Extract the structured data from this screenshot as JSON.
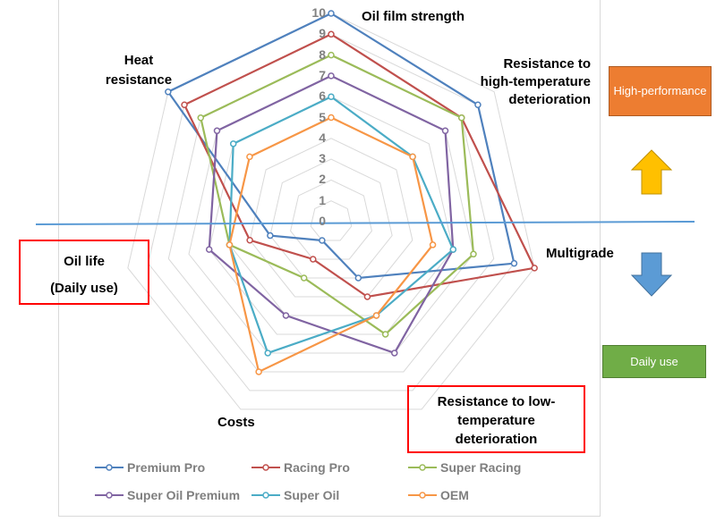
{
  "chart_data": {
    "type": "radar",
    "axes": [
      "Oil film strength",
      "Resistance to high-temperature deterioration",
      "Multigrade",
      "Resistance to low-temperature deterioration",
      "Costs",
      "Oil life (Daily use)",
      "Heat resistance"
    ],
    "rlim": [
      0,
      10
    ],
    "ticks": [
      "0",
      "1",
      "2",
      "3",
      "4",
      "5",
      "6",
      "7",
      "8",
      "9",
      "10"
    ],
    "grid": true,
    "legend": "bottom",
    "series": [
      {
        "name": "Premium Pro",
        "color": "#4f81bd",
        "values": [
          10,
          9,
          9,
          3,
          1,
          3,
          10
        ]
      },
      {
        "name": "Racing Pro",
        "color": "#c0504d",
        "values": [
          9,
          8,
          10,
          4,
          2,
          4,
          9
        ]
      },
      {
        "name": "Super Racing",
        "color": "#9bbb59",
        "values": [
          8,
          8,
          7,
          6,
          3,
          5,
          8
        ]
      },
      {
        "name": "Super Oil Premium",
        "color": "#8064a2",
        "values": [
          7,
          7,
          6,
          7,
          5,
          6,
          7
        ]
      },
      {
        "name": "Super Oil",
        "color": "#4bacc6",
        "values": [
          6,
          5,
          6,
          5,
          7,
          5,
          6
        ]
      },
      {
        "name": "OEM",
        "color": "#f79646",
        "values": [
          5,
          5,
          5,
          5,
          8,
          5,
          5
        ]
      }
    ]
  },
  "labels": {
    "oil_film": "Oil film strength",
    "high_temp": [
      "Resistance to",
      "high-temperature",
      "deterioration"
    ],
    "multigrade": "Multigrade",
    "low_temp": [
      "Resistance to low-",
      "temperature",
      "deterioration"
    ],
    "costs": "Costs",
    "oil_life": [
      "Oil life",
      "(Daily use)"
    ],
    "heat": [
      "Heat",
      "resistance"
    ]
  },
  "annotations": {
    "high_performance": "High-performance",
    "daily_use": "Daily use",
    "high_color": "#ed7d31",
    "daily_color": "#70ad47",
    "up_arrow_color": "#ffc000",
    "down_arrow_color": "#5b9bd5"
  }
}
